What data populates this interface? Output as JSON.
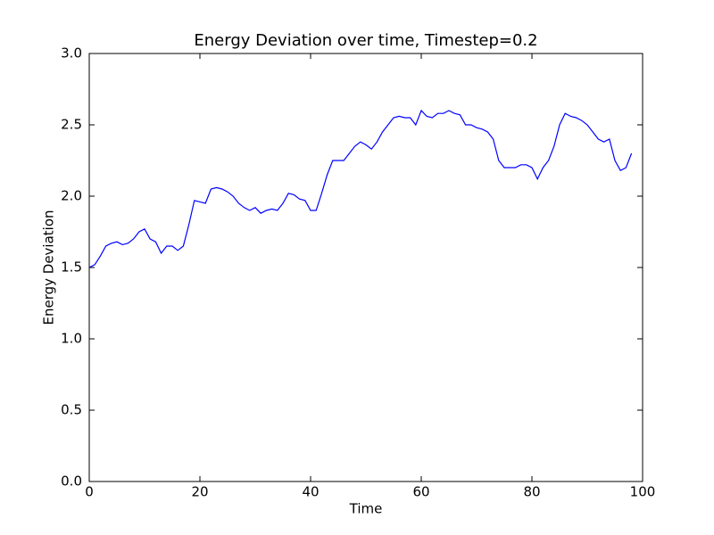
{
  "chart_data": {
    "type": "line",
    "title": "Energy Deviation over time, Timestep=0.2",
    "xlabel": "Time",
    "ylabel": "Energy Deviation",
    "x": [
      0,
      1,
      2,
      3,
      4,
      5,
      6,
      7,
      8,
      9,
      10,
      11,
      12,
      13,
      14,
      15,
      16,
      17,
      18,
      19,
      20,
      21,
      22,
      23,
      24,
      25,
      26,
      27,
      28,
      29,
      30,
      31,
      32,
      33,
      34,
      35,
      36,
      37,
      38,
      39,
      40,
      41,
      42,
      43,
      44,
      45,
      46,
      47,
      48,
      49,
      50,
      51,
      52,
      53,
      54,
      55,
      56,
      57,
      58,
      59,
      60,
      61,
      62,
      63,
      64,
      65,
      66,
      67,
      68,
      69,
      70,
      71,
      72,
      73,
      74,
      75,
      76,
      77,
      78,
      79,
      80,
      81,
      82,
      83,
      84,
      85,
      86,
      87,
      88,
      89,
      90,
      91,
      92,
      93,
      94,
      95,
      96,
      97,
      98
    ],
    "series": [
      {
        "name": "Energy Deviation",
        "color": "#0000ff",
        "values": [
          1.5,
          1.52,
          1.58,
          1.65,
          1.67,
          1.68,
          1.66,
          1.67,
          1.7,
          1.75,
          1.77,
          1.7,
          1.68,
          1.6,
          1.65,
          1.65,
          1.62,
          1.65,
          1.8,
          1.97,
          1.96,
          1.95,
          2.05,
          2.06,
          2.05,
          2.03,
          2.0,
          1.95,
          1.92,
          1.9,
          1.92,
          1.88,
          1.9,
          1.91,
          1.9,
          1.95,
          2.02,
          2.01,
          1.98,
          1.97,
          1.9,
          1.9,
          2.02,
          2.15,
          2.25,
          2.25,
          2.25,
          2.3,
          2.35,
          2.38,
          2.36,
          2.33,
          2.38,
          2.45,
          2.5,
          2.55,
          2.56,
          2.55,
          2.55,
          2.5,
          2.6,
          2.56,
          2.55,
          2.58,
          2.58,
          2.6,
          2.58,
          2.57,
          2.5,
          2.5,
          2.48,
          2.47,
          2.45,
          2.4,
          2.25,
          2.2,
          2.2,
          2.2,
          2.22,
          2.22,
          2.2,
          2.12,
          2.2,
          2.25,
          2.35,
          2.5,
          2.58,
          2.56,
          2.55,
          2.53,
          2.5,
          2.45,
          2.4,
          2.38,
          2.4,
          2.25,
          2.18,
          2.2,
          2.3
        ]
      }
    ],
    "xlim": [
      0,
      100
    ],
    "xticks": [
      0,
      20,
      40,
      60,
      80,
      100
    ],
    "ylim": [
      0,
      3
    ],
    "yticks": [
      {
        "value": 0,
        "label": "0.0"
      },
      0.5,
      {
        "value": 1,
        "label": "1.0"
      },
      1.5,
      {
        "value": 2,
        "label": "2.0"
      },
      2.5,
      {
        "value": 3,
        "label": "3.0"
      }
    ],
    "grid": false
  }
}
